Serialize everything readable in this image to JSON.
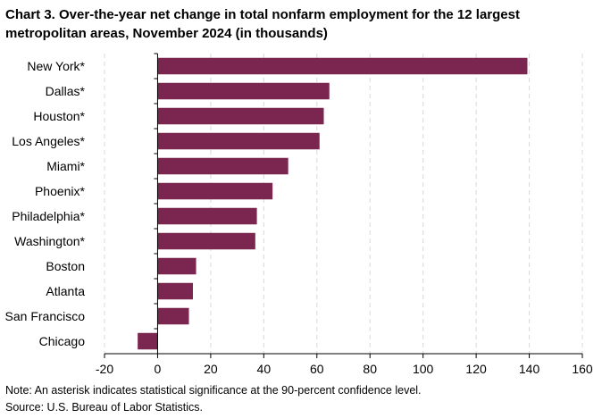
{
  "title_line1": "Chart 3. Over-the-year net change in total nonfarm employment for the 12 largest",
  "title_line2": "metropolitan areas, November 2024 (in thousands)",
  "note": "Note: An asterisk indicates statistical significance at the 90-percent confidence level.",
  "source": "Source: U.S. Bureau of Labor Statistics.",
  "colors": {
    "bar": "#7b2650",
    "grid": "#d9d9d9",
    "axis": "#000000"
  },
  "chart_data": {
    "type": "bar",
    "orientation": "horizontal",
    "title": "Chart 3. Over-the-year net change in total nonfarm employment for the 12 largest metropolitan areas, November 2024 (in thousands)",
    "categories": [
      "New York*",
      "Dallas*",
      "Houston*",
      "Los Angeles*",
      "Miami*",
      "Phoenix*",
      "Philadelphia*",
      "Washington*",
      "Boston",
      "Atlanta",
      "San Francisco",
      "Chicago"
    ],
    "values": [
      139.3,
      64.7,
      62.6,
      61.0,
      49.2,
      43.3,
      37.4,
      36.8,
      14.5,
      13.3,
      11.8,
      -7.5
    ],
    "xlim": [
      -20,
      160
    ],
    "xticks": [
      -20,
      0,
      20,
      40,
      60,
      80,
      100,
      120,
      140,
      160
    ],
    "xlabel": "",
    "ylabel": "",
    "grid": "vertical dashed"
  }
}
